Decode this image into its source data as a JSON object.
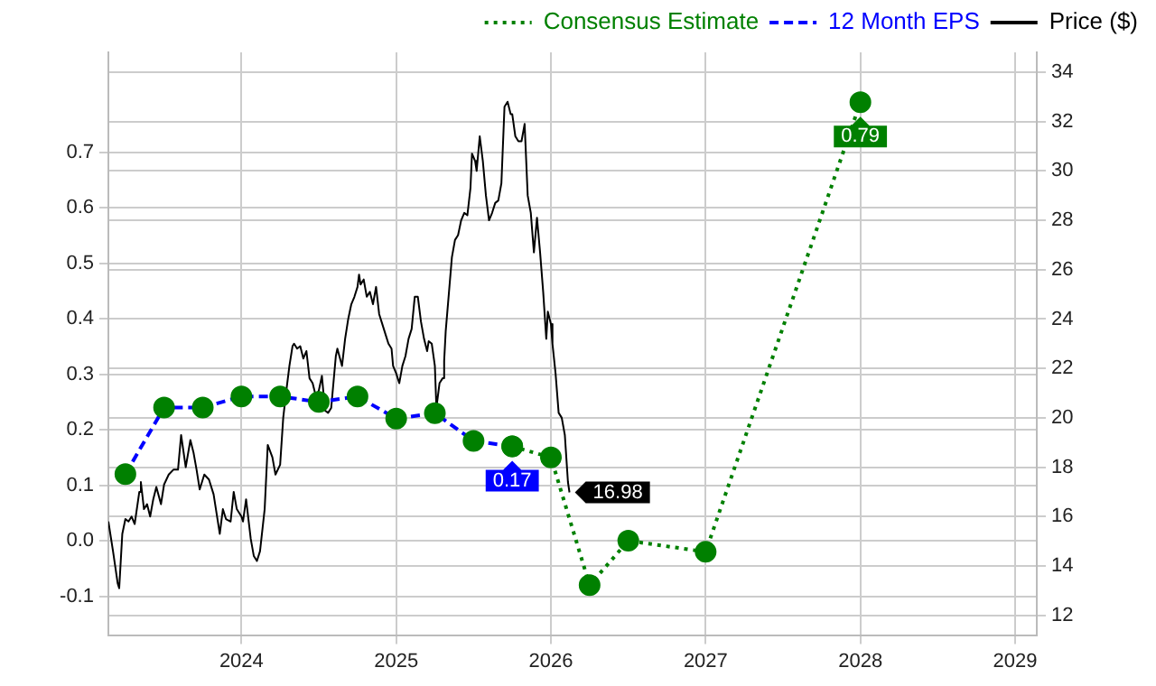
{
  "chart_data": {
    "type": "line",
    "legend": "top right",
    "grid": true,
    "marker": "circle",
    "xlim": [
      2023.14,
      2029.14
    ],
    "xticks": [
      2024,
      2025,
      2026,
      2027,
      2028,
      2029
    ],
    "ylim": [
      -0.17,
      0.88
    ],
    "yticks": [
      -0.1,
      {
        "value": 0,
        "label": "0.0"
      },
      0.1,
      0.2,
      0.3,
      0.4,
      0.5,
      0.6,
      0.7
    ],
    "y2lim": [
      11.2,
      34.8
    ],
    "y2ticks": [
      12,
      14,
      16,
      18,
      20,
      22,
      24,
      26,
      28,
      30,
      32,
      34
    ],
    "series": [
      {
        "name": "Consensus Estimate",
        "color": "#008000",
        "line_style": "dotted",
        "x": [
          2025.75,
          2026.0,
          2026.25,
          2026.5,
          2027.0,
          2028.0
        ],
        "values": [
          0.17,
          0.15,
          -0.08,
          0.0,
          -0.02,
          0.79
        ],
        "value_labels": [
          null,
          null,
          null,
          null,
          null,
          "0.79"
        ]
      },
      {
        "name": "12 Month EPS",
        "color": "#0000ff",
        "line_style": "dashed",
        "x": [
          2023.25,
          2023.5,
          2023.75,
          2024.0,
          2024.25,
          2024.5,
          2024.75,
          2025.0,
          2025.25,
          2025.5,
          2025.75
        ],
        "values": [
          0.12,
          0.24,
          0.24,
          0.26,
          0.26,
          0.25,
          0.26,
          0.22,
          0.23,
          0.18,
          0.17
        ],
        "value_labels": [
          null,
          null,
          null,
          null,
          null,
          null,
          null,
          null,
          null,
          null,
          "0.17"
        ]
      },
      {
        "name": "Price ($)",
        "color": "#000000",
        "axis": "y2",
        "marker": "none",
        "line_style": "solid",
        "x": [
          2023.14,
          2023.17,
          2023.2,
          2023.21,
          2023.23,
          2023.25,
          2023.27,
          2023.29,
          2023.31,
          2023.34,
          2023.35,
          2023.37,
          2023.39,
          2023.41,
          2023.43,
          2023.45,
          2023.48,
          2023.5,
          2023.53,
          2023.56,
          2023.59,
          2023.61,
          2023.64,
          2023.67,
          2023.69,
          2023.71,
          2023.73,
          2023.76,
          2023.79,
          2023.82,
          2023.86,
          2023.88,
          2023.9,
          2023.93,
          2023.95,
          2023.97,
          2024.0,
          2024.01,
          2024.03,
          2024.06,
          2024.08,
          2024.1,
          2024.12,
          2024.15,
          2024.17,
          2024.2,
          2024.22,
          2024.25,
          2024.27,
          2024.29,
          2024.31,
          2024.33,
          2024.34,
          2024.36,
          2024.38,
          2024.4,
          2024.42,
          2024.44,
          2024.46,
          2024.48,
          2024.5,
          2024.52,
          2024.54,
          2024.56,
          2024.58,
          2024.61,
          2024.62,
          2024.65,
          2024.67,
          2024.69,
          2024.71,
          2024.73,
          2024.75,
          2024.76,
          2024.77,
          2024.79,
          2024.81,
          2024.83,
          2024.85,
          2024.87,
          2024.89,
          2024.91,
          2024.93,
          2024.95,
          2024.97,
          2024.98,
          2025.0,
          2025.02,
          2025.04,
          2025.06,
          2025.08,
          2025.1,
          2025.12,
          2025.14,
          2025.16,
          2025.18,
          2025.2,
          2025.21,
          2025.23,
          2025.25,
          2025.26,
          2025.28,
          2025.3,
          2025.31,
          2025.32,
          2025.34,
          2025.36,
          2025.38,
          2025.4,
          2025.42,
          2025.44,
          2025.46,
          2025.48,
          2025.49,
          2025.51,
          2025.52,
          2025.54,
          2025.56,
          2025.58,
          2025.6,
          2025.62,
          2025.64,
          2025.66,
          2025.68,
          2025.7,
          2025.72,
          2025.74,
          2025.75,
          2025.77,
          2025.79,
          2025.81,
          2025.83,
          2025.85,
          2025.87,
          2025.89,
          2025.91,
          2025.93,
          2025.95,
          2025.97,
          2025.98,
          2026.0,
          2026.01,
          2026.03,
          2026.05,
          2026.07,
          2026.09,
          2026.11,
          2026.12
        ],
        "values": [
          15.8,
          14.6,
          13.3,
          13.1,
          15.3,
          15.9,
          15.8,
          16.0,
          15.7,
          17.0,
          17.4,
          16.3,
          16.5,
          16.0,
          16.7,
          17.2,
          16.5,
          17.3,
          17.7,
          17.9,
          17.9,
          19.3,
          18.0,
          19.1,
          18.6,
          17.9,
          17.1,
          17.7,
          17.5,
          16.9,
          15.3,
          16.3,
          15.9,
          15.8,
          17.0,
          16.3,
          16.0,
          15.8,
          16.7,
          15.1,
          14.4,
          14.2,
          14.6,
          16.3,
          18.9,
          18.4,
          17.7,
          18.1,
          20.0,
          21.1,
          22.1,
          22.9,
          23.0,
          22.8,
          22.9,
          22.4,
          22.7,
          21.6,
          21.4,
          20.9,
          21.1,
          21.7,
          20.3,
          20.2,
          20.4,
          22.5,
          22.8,
          22.1,
          23.2,
          24.0,
          24.6,
          24.9,
          25.3,
          25.8,
          25.4,
          25.6,
          24.9,
          25.1,
          24.6,
          25.3,
          24.2,
          23.8,
          23.4,
          23.0,
          22.8,
          22.1,
          21.8,
          21.4,
          22.1,
          22.5,
          23.2,
          23.6,
          24.9,
          24.9,
          23.9,
          23.2,
          22.7,
          23.1,
          23.0,
          22.1,
          20.4,
          21.4,
          21.6,
          22.3,
          23.5,
          25.0,
          26.5,
          27.2,
          27.4,
          28.0,
          28.3,
          28.2,
          29.3,
          30.7,
          30.4,
          30.0,
          31.4,
          30.4,
          29.0,
          28.0,
          28.3,
          28.7,
          28.8,
          29.5,
          32.6,
          32.8,
          32.3,
          32.3,
          31.4,
          31.2,
          31.2,
          31.9,
          29.0,
          28.3,
          26.7,
          28.1,
          26.7,
          25.1,
          23.2,
          24.3,
          23.8,
          23.0,
          21.8,
          20.2,
          20.0,
          19.3,
          17.4,
          16.98
        ],
        "value_labels": [
          null,
          null,
          null,
          null,
          null,
          null,
          null,
          null,
          null,
          null,
          null,
          null,
          null,
          null,
          null,
          null,
          null,
          null,
          null,
          null,
          null,
          null,
          null,
          null,
          null,
          null,
          null,
          null,
          null,
          null,
          null,
          null,
          null,
          null,
          null,
          null,
          null,
          null,
          null,
          null,
          null,
          null,
          null,
          null,
          null,
          null,
          null,
          null,
          null,
          null,
          null,
          null,
          null,
          null,
          null,
          null,
          null,
          null,
          null,
          null,
          null,
          null,
          null,
          null,
          null,
          null,
          null,
          null,
          null,
          null,
          null,
          null,
          null,
          null,
          null,
          null,
          null,
          null,
          null,
          null,
          null,
          null,
          null,
          null,
          null,
          null,
          null,
          null,
          null,
          null,
          null,
          null,
          null,
          null,
          null,
          null,
          null,
          null,
          null,
          null,
          null,
          null,
          null,
          null,
          null,
          null,
          null,
          null,
          null,
          null,
          null,
          null,
          null,
          null,
          null,
          null,
          null,
          null,
          null,
          null,
          null,
          null,
          null,
          null,
          null,
          null,
          null,
          null,
          null,
          null,
          null,
          null,
          null,
          null,
          null,
          null,
          null,
          null,
          null,
          null,
          null,
          null,
          null,
          null,
          null,
          null,
          null,
          "16.98"
        ]
      }
    ]
  }
}
